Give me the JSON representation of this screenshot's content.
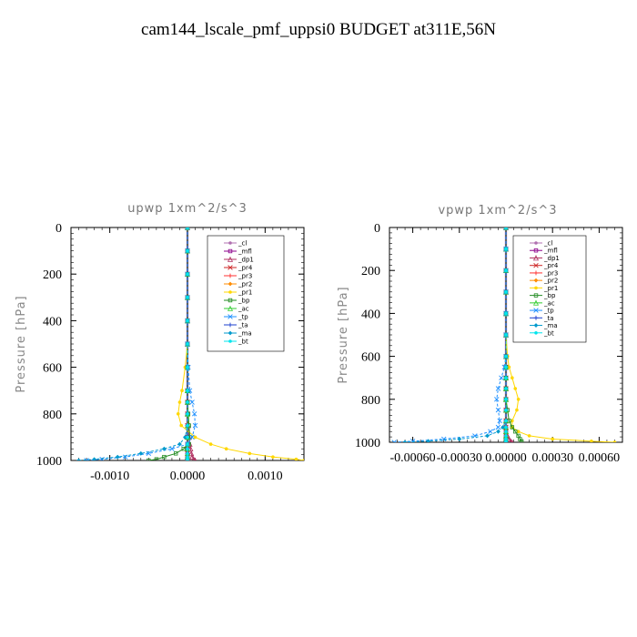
{
  "title": "cam144_lscale_pmf_uppsi0  BUDGET at311E,56N",
  "chart_data": [
    {
      "type": "line",
      "title": "upwp   1xm^2/s^3",
      "ylabel": "Pressure [hPa]",
      "xlim": [
        -0.0015,
        0.0015
      ],
      "ylim": [
        1000,
        0
      ],
      "xticks": [
        -0.001,
        0.0,
        0.001
      ],
      "xtick_labels": [
        "-0.0010",
        "0.0000",
        "0.0010"
      ],
      "yticks": [
        0,
        200,
        400,
        600,
        800,
        1000
      ],
      "ytick_labels": [
        "0",
        "200",
        "400",
        "600",
        "800",
        "1000"
      ],
      "grid": false,
      "legend_position": "top-right",
      "y": [
        0,
        100,
        200,
        300,
        400,
        500,
        600,
        700,
        750,
        800,
        850,
        900,
        930,
        950,
        970,
        985,
        995,
        1000
      ],
      "series": [
        {
          "name": "_cl",
          "color": "#b070b0",
          "values": [
            0,
            0,
            0,
            0,
            0,
            0,
            0,
            0,
            0,
            0,
            0,
            0,
            0,
            0,
            0,
            0,
            0,
            0
          ]
        },
        {
          "name": "_mfl",
          "color": "#8b008b",
          "values": [
            0,
            0,
            0,
            0,
            0,
            0,
            0,
            0,
            0,
            0,
            0,
            0,
            0,
            0,
            0,
            0,
            0,
            0
          ]
        },
        {
          "name": "_dp1",
          "color": "#b03060",
          "values": [
            0,
            0,
            0,
            0,
            0,
            0,
            0,
            0,
            0,
            0,
            1e-05,
            2e-05,
            3e-05,
            4e-05,
            5e-05,
            6e-05,
            8e-05,
            0.0001
          ]
        },
        {
          "name": "_pr4",
          "color": "#cd2626",
          "values": [
            0,
            0,
            0,
            0,
            0,
            0,
            0,
            0,
            0,
            0,
            0,
            0,
            0,
            0,
            0,
            0,
            0,
            0
          ]
        },
        {
          "name": "_pr3",
          "color": "#ff3030",
          "values": [
            0,
            0,
            0,
            0,
            0,
            0,
            0,
            0,
            0,
            0,
            0,
            0,
            0,
            0,
            0,
            0,
            0,
            0
          ]
        },
        {
          "name": "_pr2",
          "color": "#ff8c00",
          "values": [
            0,
            0,
            0,
            0,
            0,
            0,
            0,
            0,
            0,
            0,
            0,
            0,
            0,
            0,
            0,
            0,
            0,
            0
          ]
        },
        {
          "name": "_pr1",
          "color": "#ffd700",
          "values": [
            0,
            0,
            0,
            0,
            0,
            0,
            -3e-05,
            -7e-05,
            -0.0001,
            -0.00012,
            -8e-05,
            0.0001,
            0.0003,
            0.0005,
            0.0008,
            0.0011,
            0.0014,
            0.0015
          ]
        },
        {
          "name": "_bp",
          "color": "#228b22",
          "values": [
            0,
            0,
            0,
            0,
            0,
            0,
            0,
            0,
            0,
            1e-05,
            2e-05,
            3e-05,
            2e-05,
            -5e-05,
            -0.00015,
            -0.0003,
            -0.0004,
            -0.0005
          ]
        },
        {
          "name": "_ac",
          "color": "#32cd32",
          "values": [
            0,
            0,
            0,
            0,
            0,
            0,
            0,
            0,
            0,
            0,
            0,
            0,
            0,
            0,
            0,
            0,
            0,
            0
          ]
        },
        {
          "name": "_tp",
          "color": "#1e90ff",
          "values": [
            0,
            0,
            0,
            0,
            0,
            0,
            1e-05,
            3e-05,
            6e-05,
            9e-05,
            0.0001,
            6e-05,
            0,
            -0.0002,
            -0.0005,
            -0.0008,
            -0.0011,
            -0.0013
          ]
        },
        {
          "name": "_ta",
          "color": "#1c3fcf",
          "values": [
            0,
            0,
            0,
            0,
            0,
            0,
            0,
            0,
            0,
            0,
            0,
            0,
            0,
            0,
            0,
            0,
            0,
            0
          ]
        },
        {
          "name": "_ma",
          "color": "#009acd",
          "values": [
            0,
            0,
            0,
            0,
            0,
            0,
            0,
            0,
            0,
            0,
            0,
            -3e-05,
            -0.0001,
            -0.0003,
            -0.0006,
            -0.0009,
            -0.0012,
            -0.0014
          ]
        },
        {
          "name": "_bt",
          "color": "#00e5ee",
          "values": [
            0,
            0,
            0,
            0,
            0,
            0,
            0,
            0,
            0,
            0,
            0,
            0,
            0,
            0,
            0,
            0,
            0,
            0
          ]
        }
      ]
    },
    {
      "type": "line",
      "title": "vpwp   1xm^2/s^3",
      "ylabel": "Pressure [hPa]",
      "xlim": [
        -0.00075,
        0.00075
      ],
      "ylim": [
        1000,
        0
      ],
      "xticks": [
        -0.0006,
        -0.0003,
        0.0,
        0.0003,
        0.0006
      ],
      "xtick_labels": [
        "-0.00060",
        "-0.00030",
        "0.00000",
        "0.00030",
        "0.00060"
      ],
      "yticks": [
        0,
        200,
        400,
        600,
        800,
        1000
      ],
      "ytick_labels": [
        "0",
        "200",
        "400",
        "600",
        "800",
        "1000"
      ],
      "grid": false,
      "legend_position": "top-right",
      "y": [
        0,
        100,
        200,
        300,
        400,
        500,
        600,
        650,
        700,
        750,
        800,
        850,
        900,
        930,
        950,
        970,
        985,
        995,
        1000
      ],
      "series": [
        {
          "name": "_cl",
          "color": "#b070b0",
          "values": [
            0,
            0,
            0,
            0,
            0,
            0,
            0,
            0,
            0,
            0,
            0,
            0,
            0,
            0,
            0,
            0,
            0,
            0,
            0
          ]
        },
        {
          "name": "_mfl",
          "color": "#8b008b",
          "values": [
            0,
            0,
            0,
            0,
            0,
            0,
            0,
            0,
            0,
            0,
            0,
            0,
            0,
            0,
            0,
            0,
            0,
            0,
            0
          ]
        },
        {
          "name": "_dp1",
          "color": "#b03060",
          "values": [
            0,
            0,
            0,
            0,
            0,
            0,
            0,
            0,
            0,
            0,
            0,
            0,
            0,
            0,
            0,
            1e-05,
            2e-05,
            3e-05,
            4e-05
          ]
        },
        {
          "name": "_pr4",
          "color": "#cd2626",
          "values": [
            0,
            0,
            0,
            0,
            0,
            0,
            0,
            0,
            0,
            0,
            0,
            0,
            0,
            0,
            0,
            0,
            0,
            0,
            0
          ]
        },
        {
          "name": "_pr3",
          "color": "#ff3030",
          "values": [
            0,
            0,
            0,
            0,
            0,
            0,
            0,
            0,
            0,
            0,
            0,
            0,
            0,
            0,
            0,
            0,
            0,
            0,
            0
          ]
        },
        {
          "name": "_pr2",
          "color": "#ff8c00",
          "values": [
            0,
            0,
            0,
            0,
            0,
            0,
            0,
            0,
            0,
            0,
            0,
            0,
            0,
            0,
            0,
            0,
            0,
            0,
            0
          ]
        },
        {
          "name": "_pr1",
          "color": "#ffd700",
          "values": [
            0,
            0,
            0,
            0,
            0,
            0,
            1e-05,
            2e-05,
            4e-05,
            6e-05,
            8e-05,
            7e-05,
            4e-05,
            4e-05,
            8e-05,
            0.00015,
            0.0003,
            0.00055,
            0.0007
          ]
        },
        {
          "name": "_bp",
          "color": "#228b22",
          "values": [
            0,
            0,
            0,
            0,
            0,
            0,
            0,
            0,
            0,
            0,
            0,
            1e-05,
            2e-05,
            4e-05,
            6e-05,
            8e-05,
            9e-05,
            0.0001,
            0.0001
          ]
        },
        {
          "name": "_ac",
          "color": "#32cd32",
          "values": [
            0,
            0,
            0,
            0,
            0,
            0,
            0,
            0,
            0,
            0,
            0,
            0,
            0,
            0,
            0,
            0,
            0,
            0,
            0
          ]
        },
        {
          "name": "_tp",
          "color": "#1e90ff",
          "values": [
            0,
            0,
            0,
            0,
            0,
            0,
            0,
            -1e-05,
            -3e-05,
            -5e-05,
            -6e-05,
            -5e-05,
            -4e-05,
            -5e-05,
            -0.0001,
            -0.0002,
            -0.0004,
            -0.0006,
            -0.00072
          ]
        },
        {
          "name": "_ta",
          "color": "#1c3fcf",
          "values": [
            0,
            0,
            0,
            0,
            0,
            0,
            0,
            0,
            0,
            0,
            0,
            0,
            0,
            0,
            0,
            0,
            0,
            0,
            0
          ]
        },
        {
          "name": "_ma",
          "color": "#009acd",
          "values": [
            0,
            0,
            0,
            0,
            0,
            0,
            0,
            0,
            0,
            0,
            0,
            0,
            0,
            -2e-05,
            -5e-05,
            -0.00012,
            -0.0003,
            -0.0005,
            -0.00065
          ]
        },
        {
          "name": "_bt",
          "color": "#00e5ee",
          "values": [
            0,
            0,
            0,
            0,
            0,
            0,
            0,
            0,
            0,
            0,
            0,
            0,
            0,
            0,
            0,
            0,
            0,
            0,
            0
          ]
        }
      ]
    }
  ]
}
